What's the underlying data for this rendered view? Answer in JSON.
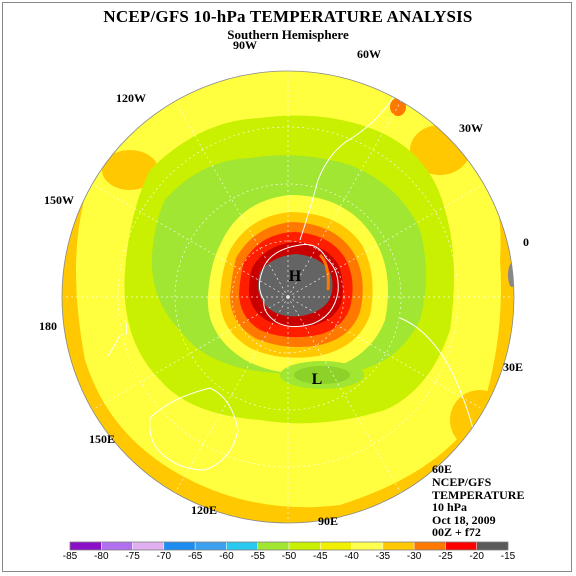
{
  "title": "NCEP/GFS 10-hPa TEMPERATURE ANALYSIS",
  "subtitle": "Southern Hemisphere",
  "longitude_labels": {
    "w90": "90W",
    "w60": "60W",
    "w30": "30W",
    "zero": "0",
    "w120": "120W",
    "w150": "150W",
    "l180": "180",
    "e30": "30E",
    "e60": "60E",
    "e90": "90E",
    "e120": "120E",
    "e150": "150E"
  },
  "markers": {
    "high": "H",
    "low": "L"
  },
  "info": {
    "source": "NCEP/GFS",
    "variable": "TEMPERATURE",
    "level": "10 hPa",
    "date": "Oct 18, 2009",
    "run": "00Z + f72"
  },
  "colorbar": {
    "ticks": [
      "-85",
      "-80",
      "-75",
      "-70",
      "-65",
      "-60",
      "-55",
      "-50",
      "-45",
      "-40",
      "-35",
      "-30",
      "-25",
      "-20",
      "-15"
    ],
    "colors": [
      "#8a10c8",
      "#b070f0",
      "#e0b0f0",
      "#1e8cf0",
      "#3ca0f0",
      "#28c8f0",
      "#a0e632",
      "#c8f000",
      "#f0f000",
      "#ffff50",
      "#ffc800",
      "#ff7800",
      "#ff0000",
      "#5a5a5a"
    ]
  },
  "colors": {
    "outer_orange": "#ffc800",
    "yellow": "#ffff40",
    "light_green": "#c8f000",
    "dark_green": "#a0e632",
    "red": "#ff1e00",
    "dark_red": "#c80000",
    "gray": "#646464"
  }
}
